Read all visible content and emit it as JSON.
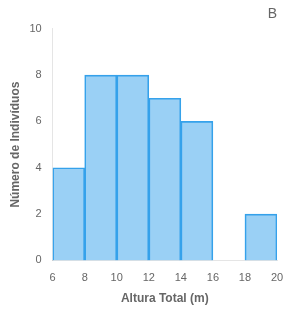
{
  "chart_data": {
    "type": "histogram",
    "title": "B",
    "xlabel": "Altura Total (m)",
    "ylabel": "Número de Indivíduos",
    "bins": [
      6,
      8,
      10,
      12,
      14,
      16,
      18,
      20
    ],
    "values": [
      4,
      8,
      8,
      7,
      6,
      0,
      2
    ],
    "xlim": [
      6,
      20
    ],
    "ylim": [
      0,
      10
    ],
    "xticks": [
      6,
      8,
      10,
      12,
      14,
      16,
      18,
      20
    ],
    "yticks": [
      0,
      2,
      4,
      6,
      8,
      10
    ],
    "grid": false
  }
}
